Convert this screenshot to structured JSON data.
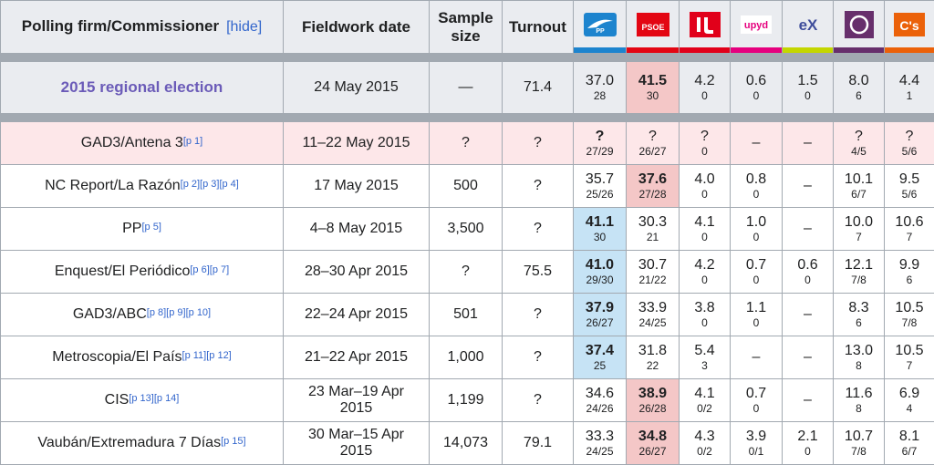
{
  "header": {
    "firm_label": "Polling firm/Commissioner",
    "hide_open": "[",
    "hide_label": "hide",
    "hide_close": "]",
    "date_label": "Fieldwork date",
    "sample_label_1": "Sample",
    "sample_label_2": "size",
    "turnout_label": "Turnout",
    "parties": [
      {
        "name": "PP",
        "color": "#1d84ce",
        "icon": "pp-logo-icon"
      },
      {
        "name": "PSOE",
        "color": "#e30613",
        "icon": "psoe-logo-icon"
      },
      {
        "name": "IU",
        "color": "#e1001a",
        "icon": "iu-logo-icon"
      },
      {
        "name": "UPyD",
        "color": "#e5007e",
        "icon": "upyd-logo-icon"
      },
      {
        "name": "eX",
        "color": "#c4d600",
        "icon": "ex-logo-icon"
      },
      {
        "name": "Podemos",
        "color": "#672f6c",
        "icon": "podemos-logo-icon"
      },
      {
        "name": "C's",
        "color": "#eb6109",
        "icon": "cs-logo-icon"
      }
    ]
  },
  "election": {
    "name": "2015 regional election",
    "date": "24 May 2015",
    "sample": "—",
    "turnout": "71.4",
    "cells": [
      {
        "pct": "37.0",
        "seats": "28"
      },
      {
        "pct": "41.5",
        "seats": "30"
      },
      {
        "pct": "4.2",
        "seats": "0"
      },
      {
        "pct": "0.6",
        "seats": "0"
      },
      {
        "pct": "1.5",
        "seats": "0"
      },
      {
        "pct": "8.0",
        "seats": "6"
      },
      {
        "pct": "4.4",
        "seats": "1"
      }
    ]
  },
  "polls": [
    {
      "firm": "GAD3/Antena 3",
      "refs": "[p 1]",
      "date1": "11–22 May 2015",
      "date2": "",
      "sample": "?",
      "turnout": "?",
      "cells": [
        {
          "pct": "?",
          "seats": "27/29"
        },
        {
          "pct": "?",
          "seats": "26/27"
        },
        {
          "pct": "?",
          "seats": "0"
        },
        {
          "pct": "–",
          "seats": ""
        },
        {
          "pct": "–",
          "seats": ""
        },
        {
          "pct": "?",
          "seats": "4/5"
        },
        {
          "pct": "?",
          "seats": "5/6"
        }
      ]
    },
    {
      "firm": "NC Report/La Razón",
      "refs": "[p 2][p 3][p 4]",
      "date1": "17 May 2015",
      "date2": "",
      "sample": "500",
      "turnout": "?",
      "cells": [
        {
          "pct": "35.7",
          "seats": "25/26"
        },
        {
          "pct": "37.6",
          "seats": "27/28"
        },
        {
          "pct": "4.0",
          "seats": "0"
        },
        {
          "pct": "0.8",
          "seats": "0"
        },
        {
          "pct": "–",
          "seats": ""
        },
        {
          "pct": "10.1",
          "seats": "6/7"
        },
        {
          "pct": "9.5",
          "seats": "5/6"
        }
      ]
    },
    {
      "firm": "PP",
      "refs": "[p 5]",
      "date1": "4–8 May 2015",
      "date2": "",
      "sample": "3,500",
      "turnout": "?",
      "cells": [
        {
          "pct": "41.1",
          "seats": "30"
        },
        {
          "pct": "30.3",
          "seats": "21"
        },
        {
          "pct": "4.1",
          "seats": "0"
        },
        {
          "pct": "1.0",
          "seats": "0"
        },
        {
          "pct": "–",
          "seats": ""
        },
        {
          "pct": "10.0",
          "seats": "7"
        },
        {
          "pct": "10.6",
          "seats": "7"
        }
      ]
    },
    {
      "firm": "Enquest/El Periódico",
      "refs": "[p 6][p 7]",
      "date1": "28–30 Apr 2015",
      "date2": "",
      "sample": "?",
      "turnout": "75.5",
      "cells": [
        {
          "pct": "41.0",
          "seats": "29/30"
        },
        {
          "pct": "30.7",
          "seats": "21/22"
        },
        {
          "pct": "4.2",
          "seats": "0"
        },
        {
          "pct": "0.7",
          "seats": "0"
        },
        {
          "pct": "0.6",
          "seats": "0"
        },
        {
          "pct": "12.1",
          "seats": "7/8"
        },
        {
          "pct": "9.9",
          "seats": "6"
        }
      ]
    },
    {
      "firm": "GAD3/ABC",
      "refs": "[p 8][p 9][p 10]",
      "date1": "22–24 Apr 2015",
      "date2": "",
      "sample": "501",
      "turnout": "?",
      "cells": [
        {
          "pct": "37.9",
          "seats": "26/27"
        },
        {
          "pct": "33.9",
          "seats": "24/25"
        },
        {
          "pct": "3.8",
          "seats": "0"
        },
        {
          "pct": "1.1",
          "seats": "0"
        },
        {
          "pct": "–",
          "seats": ""
        },
        {
          "pct": "8.3",
          "seats": "6"
        },
        {
          "pct": "10.5",
          "seats": "7/8"
        }
      ]
    },
    {
      "firm": "Metroscopia/El País",
      "refs": "[p 11][p 12]",
      "date1": "21–22 Apr 2015",
      "date2": "",
      "sample": "1,000",
      "turnout": "?",
      "cells": [
        {
          "pct": "37.4",
          "seats": "25"
        },
        {
          "pct": "31.8",
          "seats": "22"
        },
        {
          "pct": "5.4",
          "seats": "3"
        },
        {
          "pct": "–",
          "seats": ""
        },
        {
          "pct": "–",
          "seats": ""
        },
        {
          "pct": "13.0",
          "seats": "8"
        },
        {
          "pct": "10.5",
          "seats": "7"
        }
      ]
    },
    {
      "firm": "CIS",
      "refs": "[p 13][p 14]",
      "date1": "23 Mar–19 Apr",
      "date2": "2015",
      "sample": "1,199",
      "turnout": "?",
      "cells": [
        {
          "pct": "34.6",
          "seats": "24/26"
        },
        {
          "pct": "38.9",
          "seats": "26/28"
        },
        {
          "pct": "4.1",
          "seats": "0/2"
        },
        {
          "pct": "0.7",
          "seats": "0"
        },
        {
          "pct": "–",
          "seats": ""
        },
        {
          "pct": "11.6",
          "seats": "8"
        },
        {
          "pct": "6.9",
          "seats": "4"
        }
      ]
    },
    {
      "firm": "Vaubán/Extremadura 7 Días",
      "refs": "[p 15]",
      "date1": "30 Mar–15 Apr",
      "date2": "2015",
      "sample": "14,073",
      "turnout": "79.1",
      "cells": [
        {
          "pct": "33.3",
          "seats": "24/25"
        },
        {
          "pct": "34.8",
          "seats": "26/27"
        },
        {
          "pct": "4.3",
          "seats": "0/2"
        },
        {
          "pct": "3.9",
          "seats": "0/1"
        },
        {
          "pct": "2.1",
          "seats": "0"
        },
        {
          "pct": "10.7",
          "seats": "7/8"
        },
        {
          "pct": "8.1",
          "seats": "6/7"
        }
      ]
    }
  ]
}
